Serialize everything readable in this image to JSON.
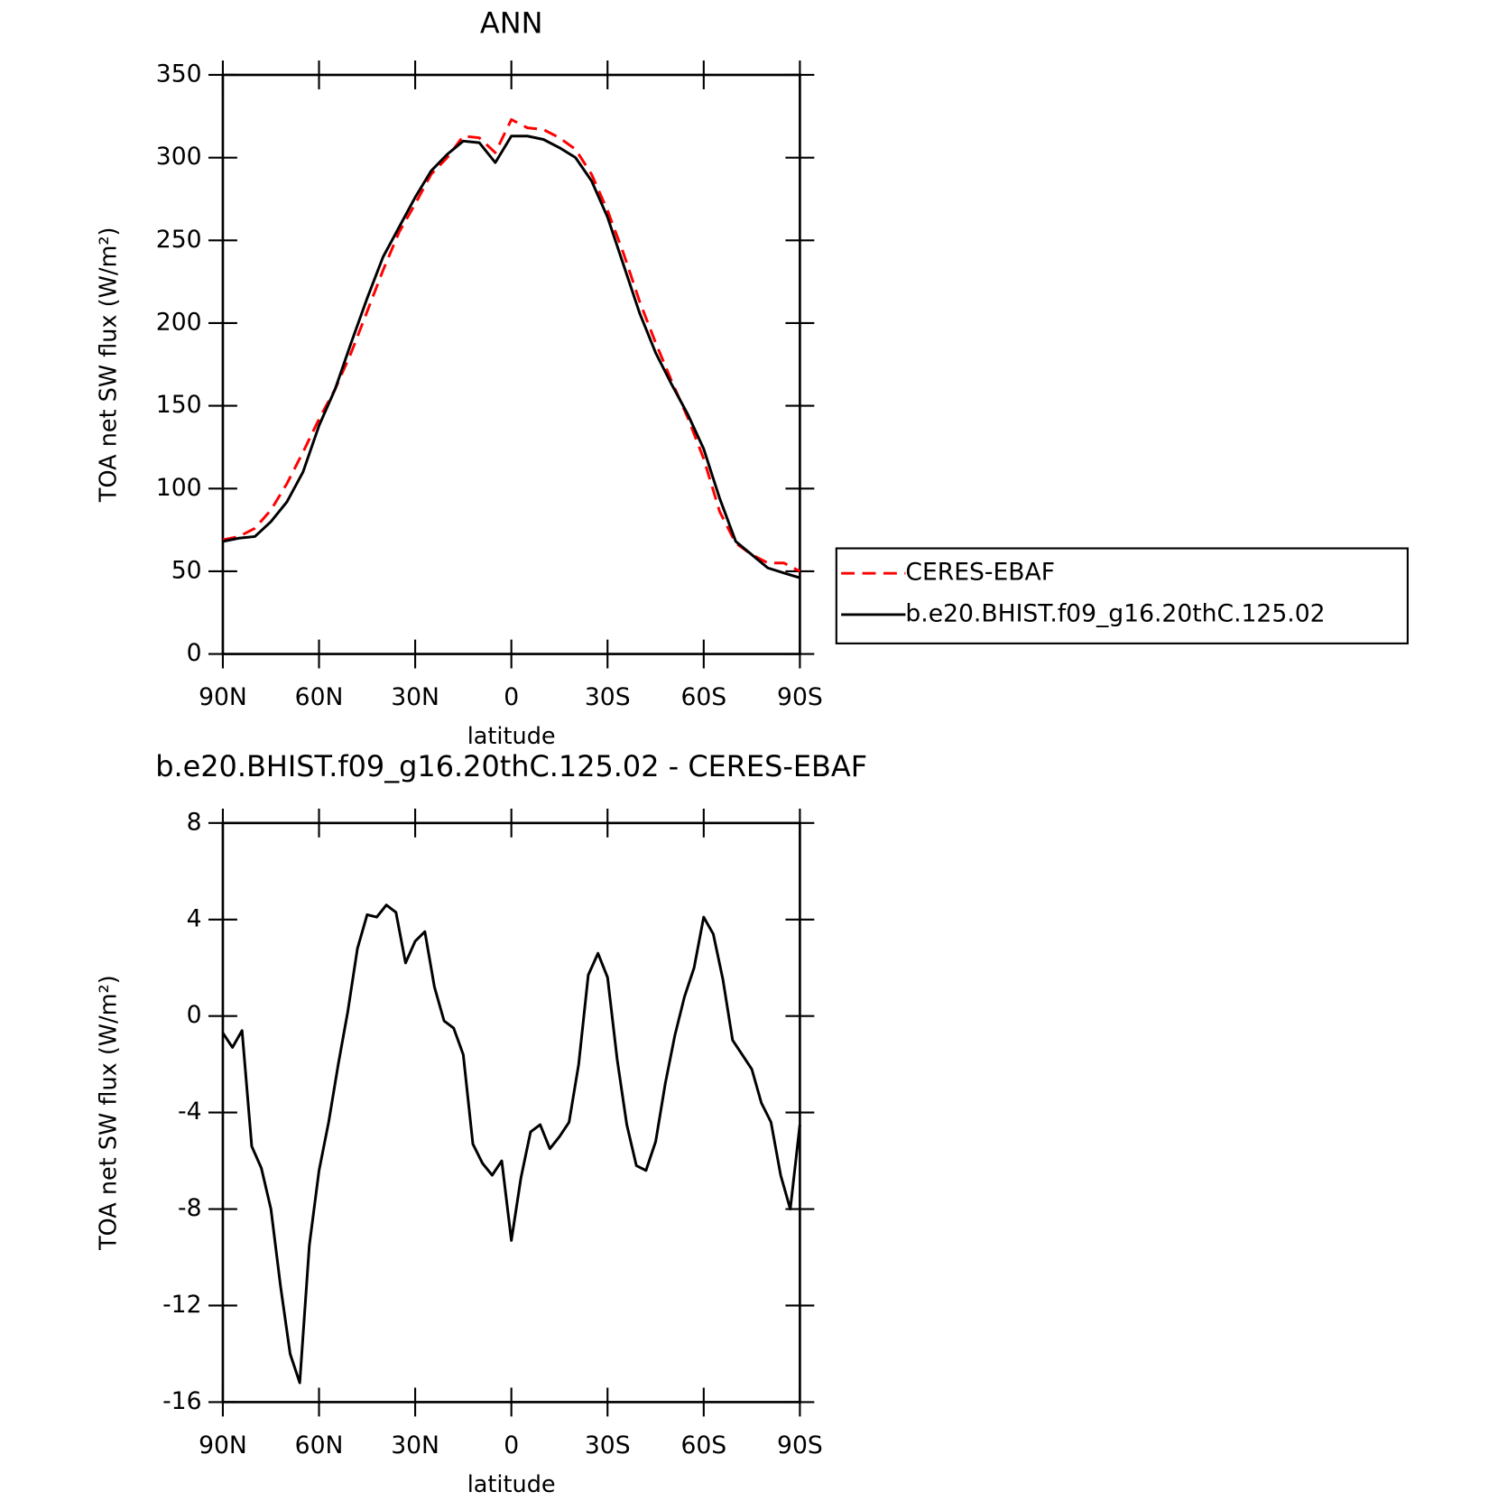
{
  "chart_data": [
    {
      "type": "line",
      "title": "ANN",
      "xlabel": "latitude",
      "ylabel": "TOA net SW flux (W/m²)",
      "x": [
        90,
        85,
        80,
        75,
        70,
        65,
        60,
        55,
        50,
        45,
        40,
        35,
        30,
        25,
        20,
        15,
        10,
        5,
        0,
        -5,
        -10,
        -15,
        -20,
        -25,
        -30,
        -35,
        -40,
        -45,
        -50,
        -55,
        -60,
        -65,
        -70,
        -75,
        -80,
        -85,
        -90
      ],
      "series": [
        {
          "name": "CERES-EBAF",
          "color": "#ff0000",
          "line_style": "dashed",
          "values": [
            69,
            71,
            76,
            87,
            103,
            122,
            142,
            160,
            182,
            207,
            232,
            255,
            272,
            290,
            300,
            313,
            312,
            303,
            323,
            318,
            317,
            312,
            305,
            290,
            268,
            242,
            213,
            188,
            165,
            143,
            118,
            86,
            67,
            60,
            55,
            55,
            50
          ]
        },
        {
          "name": "b.e20.BHIST.f09_g16.20thC.125.02",
          "color": "#000000",
          "line_style": "solid",
          "values": [
            68,
            70,
            71,
            80,
            92,
            110,
            138,
            160,
            188,
            215,
            240,
            258,
            276,
            292,
            302,
            310,
            309,
            297,
            313,
            313,
            311,
            306,
            300,
            286,
            264,
            235,
            206,
            182,
            163,
            145,
            124,
            94,
            68,
            60,
            52,
            49,
            46
          ]
        }
      ],
      "xlim": [
        90,
        -90
      ],
      "xticks": [
        {
          "value": 90,
          "label": "90N"
        },
        {
          "value": 60,
          "label": "60N"
        },
        {
          "value": 30,
          "label": "30N"
        },
        0,
        {
          "value": -30,
          "label": "30S"
        },
        {
          "value": -60,
          "label": "60S"
        },
        {
          "value": -90,
          "label": "90S"
        }
      ],
      "ylim": [
        0,
        350
      ],
      "yticks": [
        0,
        50,
        100,
        150,
        200,
        250,
        300,
        350
      ],
      "legend": "outside-right"
    },
    {
      "type": "line",
      "title": "b.e20.BHIST.f09_g16.20thC.125.02 - CERES-EBAF",
      "xlabel": "latitude",
      "ylabel": "TOA net SW flux (W/m²)",
      "x": [
        90,
        87,
        84,
        81,
        78,
        75,
        72,
        69,
        66,
        63,
        60,
        57,
        54,
        51,
        48,
        45,
        42,
        39,
        36,
        33,
        30,
        27,
        24,
        21,
        18,
        15,
        12,
        9,
        6,
        3,
        0,
        -3,
        -6,
        -9,
        -12,
        -15,
        -18,
        -21,
        -24,
        -27,
        -30,
        -33,
        -36,
        -39,
        -42,
        -45,
        -48,
        -51,
        -54,
        -57,
        -60,
        -63,
        -66,
        -69,
        -72,
        -75,
        -78,
        -81,
        -84,
        -87,
        -90
      ],
      "values": [
        -0.7,
        -1.3,
        -0.6,
        -5.4,
        -6.3,
        -8.0,
        -11.2,
        -14,
        -15.2,
        -9.5,
        -6.4,
        -4.4,
        -2.0,
        0.2,
        2.8,
        4.2,
        4.1,
        4.6,
        4.3,
        2.2,
        3.1,
        3.5,
        1.2,
        -0.2,
        -0.5,
        -1.6,
        -5.3,
        -6.1,
        -6.6,
        -6.0,
        -9.3,
        -6.7,
        -4.8,
        -4.5,
        -5.5,
        -5.0,
        -4.4,
        -2.0,
        1.7,
        2.6,
        1.6,
        -1.8,
        -4.5,
        -6.2,
        -6.4,
        -5.2,
        -2.8,
        -0.8,
        0.8,
        2.0,
        4.1,
        3.4,
        1.5,
        -1.0,
        -1.6,
        -2.2,
        -3.6,
        -4.4,
        -6.6,
        -8.0,
        -4.5
      ],
      "color": "#000000",
      "xlim": [
        90,
        -90
      ],
      "xticks": [
        {
          "value": 90,
          "label": "90N"
        },
        {
          "value": 60,
          "label": "60N"
        },
        {
          "value": 30,
          "label": "30N"
        },
        0,
        {
          "value": -30,
          "label": "30S"
        },
        {
          "value": -60,
          "label": "60S"
        },
        {
          "value": -90,
          "label": "90S"
        }
      ],
      "ylim": [
        -16,
        8
      ],
      "yticks": [
        -16,
        -12,
        -8,
        -4,
        0,
        4,
        8
      ]
    }
  ]
}
